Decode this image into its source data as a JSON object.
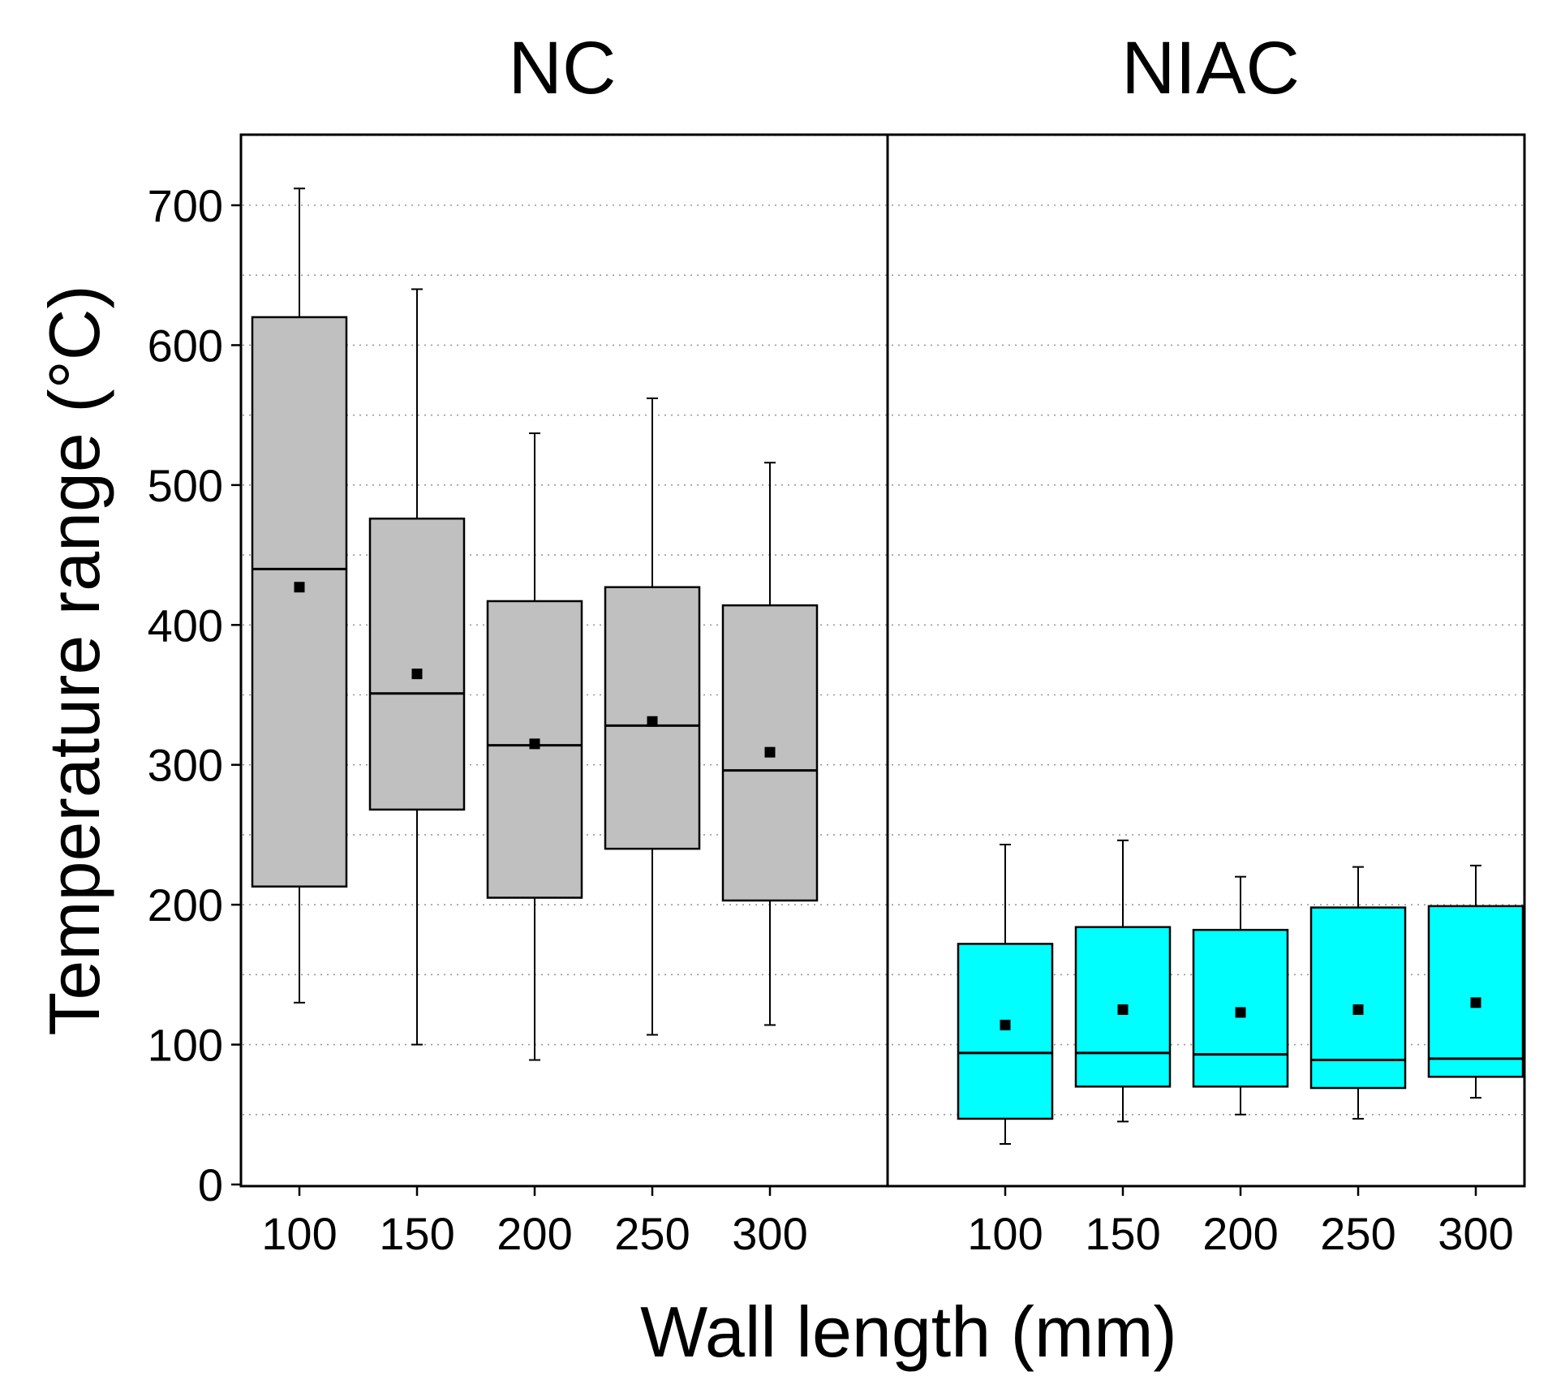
{
  "chart_data": {
    "type": "boxplot",
    "xlabel": "Wall length (mm)",
    "ylabel": "Temperature range (°C)",
    "ylim": [
      0,
      750
    ],
    "yticks": [
      0,
      100,
      200,
      300,
      400,
      500,
      600,
      700
    ],
    "grid": "horizontal dotted every 50",
    "panels": [
      {
        "title": "NC",
        "color": "#c0c0c0",
        "categories": [
          "100",
          "150",
          "200",
          "250",
          "300"
        ],
        "boxes": [
          {
            "whisker_low": 130,
            "q1": 213,
            "median": 440,
            "q3": 620,
            "whisker_high": 712,
            "mean": 427
          },
          {
            "whisker_low": 100,
            "q1": 268,
            "median": 351,
            "q3": 476,
            "whisker_high": 640,
            "mean": 365
          },
          {
            "whisker_low": 89,
            "q1": 205,
            "median": 314,
            "q3": 417,
            "whisker_high": 537,
            "mean": 315
          },
          {
            "whisker_low": 107,
            "q1": 240,
            "median": 328,
            "q3": 427,
            "whisker_high": 562,
            "mean": 331
          },
          {
            "whisker_low": 114,
            "q1": 203,
            "median": 296,
            "q3": 414,
            "whisker_high": 516,
            "mean": 309
          }
        ]
      },
      {
        "title": "NIAC",
        "color": "#00ffff",
        "categories": [
          "100",
          "150",
          "200",
          "250",
          "300"
        ],
        "boxes": [
          {
            "whisker_low": 29,
            "q1": 47,
            "median": 94,
            "q3": 172,
            "whisker_high": 243,
            "mean": 114
          },
          {
            "whisker_low": 45,
            "q1": 70,
            "median": 94,
            "q3": 184,
            "whisker_high": 246,
            "mean": 125
          },
          {
            "whisker_low": 50,
            "q1": 70,
            "median": 93,
            "q3": 182,
            "whisker_high": 220,
            "mean": 123
          },
          {
            "whisker_low": 47,
            "q1": 69,
            "median": 89,
            "q3": 198,
            "whisker_high": 227,
            "mean": 125
          },
          {
            "whisker_low": 62,
            "q1": 77,
            "median": 90,
            "q3": 199,
            "whisker_high": 228,
            "mean": 130
          }
        ]
      }
    ]
  }
}
